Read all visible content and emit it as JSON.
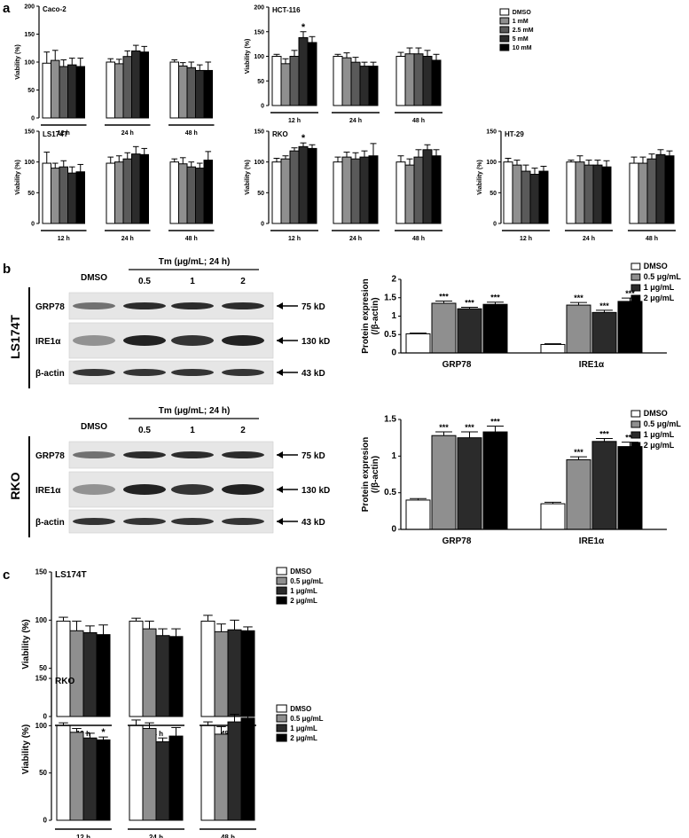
{
  "colors": {
    "DMSO": "#ffffff",
    "c1": "#8f8f8f",
    "c2": "#5a5a5a",
    "c3": "#2b2b2b",
    "c4": "#000000",
    "axis": "#000000"
  },
  "panel_labels": {
    "a": "a",
    "b": "b",
    "c": "c"
  },
  "panel_a": {
    "legend": [
      "DMSO",
      "1 mM",
      "2.5 mM",
      "5 mM",
      "10 mM"
    ],
    "ylabel": "Viability (%)",
    "timepoints": [
      "12 h",
      "24 h",
      "48 h"
    ]
  },
  "panel_b": {
    "treatment_header": "Tm (μg/mL; 24 h)",
    "dmso_label": "DMSO",
    "doses": [
      "0.5",
      "1",
      "2"
    ],
    "bands": [
      {
        "name": "GRP78",
        "kd": "75 kD"
      },
      {
        "name": "IRE1α",
        "kd": "130 kD"
      },
      {
        "name": "β-actin",
        "kd": "43 kD"
      }
    ],
    "cell_lines": [
      "LS174T",
      "RKO"
    ],
    "legend": [
      "DMSO",
      "0.5 μg/mL",
      "1 μg/mL",
      "2 μg/mL"
    ],
    "ylabel_line1": "Protein expresion",
    "ylabel_line2": "(/β-actin)",
    "groups": [
      "GRP78",
      "IRE1α"
    ]
  },
  "panel_c": {
    "legend": [
      "DMSO",
      "0.5 μg/mL",
      "1 μg/mL",
      "2 μg/mL"
    ],
    "ylabel": "Viability (%)",
    "timepoints": [
      "12 h",
      "24 h",
      "48 h"
    ]
  },
  "chart_data": [
    {
      "id": "a-caco2",
      "type": "bar",
      "title": "Caco-2",
      "ylabel": "Viability (%)",
      "ylim": [
        0,
        200
      ],
      "yticks": [
        0,
        50,
        100,
        150,
        200
      ],
      "categories": [
        "12 h",
        "24 h",
        "48 h"
      ],
      "series": [
        {
          "name": "DMSO",
          "values": [
            98,
            100,
            100
          ],
          "errors": [
            20,
            6,
            4
          ]
        },
        {
          "name": "1 mM",
          "values": [
            103,
            97,
            93
          ],
          "errors": [
            18,
            8,
            6
          ]
        },
        {
          "name": "2.5 mM",
          "values": [
            92,
            110,
            90
          ],
          "errors": [
            12,
            10,
            10
          ]
        },
        {
          "name": "5 mM",
          "values": [
            95,
            120,
            85
          ],
          "errors": [
            12,
            10,
            10
          ]
        },
        {
          "name": "10 mM",
          "values": [
            92,
            118,
            85
          ],
          "errors": [
            15,
            10,
            15
          ]
        }
      ],
      "stars": []
    },
    {
      "id": "a-hct116",
      "type": "bar",
      "title": "HCT-116",
      "ylabel": "Viability (%)",
      "ylim": [
        0,
        200
      ],
      "yticks": [
        0,
        50,
        100,
        150,
        200
      ],
      "categories": [
        "12 h",
        "24 h",
        "48 h"
      ],
      "series": [
        {
          "name": "DMSO",
          "values": [
            100,
            100,
            100
          ],
          "errors": [
            4,
            4,
            8
          ]
        },
        {
          "name": "1 mM",
          "values": [
            85,
            97,
            105
          ],
          "errors": [
            10,
            10,
            12
          ]
        },
        {
          "name": "2.5 mM",
          "values": [
            100,
            88,
            105
          ],
          "errors": [
            12,
            10,
            12
          ]
        },
        {
          "name": "5 mM",
          "values": [
            138,
            80,
            100
          ],
          "errors": [
            12,
            8,
            12
          ]
        },
        {
          "name": "10 mM",
          "values": [
            128,
            80,
            92
          ],
          "errors": [
            12,
            8,
            12
          ]
        }
      ],
      "stars": [
        {
          "category": 0,
          "series": 3,
          "label": "*"
        }
      ]
    },
    {
      "id": "a-ls174t",
      "type": "bar",
      "title": "LS174T",
      "ylabel": "Viability (%)",
      "ylim": [
        0,
        150
      ],
      "yticks": [
        0,
        50,
        100,
        150
      ],
      "categories": [
        "12 h",
        "24 h",
        "48 h"
      ],
      "series": [
        {
          "name": "DMSO",
          "values": [
            98,
            98,
            100
          ],
          "errors": [
            18,
            10,
            5
          ]
        },
        {
          "name": "1 mM",
          "values": [
            90,
            100,
            97
          ],
          "errors": [
            8,
            10,
            10
          ]
        },
        {
          "name": "2.5 mM",
          "values": [
            92,
            105,
            92
          ],
          "errors": [
            10,
            10,
            8
          ]
        },
        {
          "name": "5 mM",
          "values": [
            82,
            113,
            90
          ],
          "errors": [
            10,
            12,
            8
          ]
        },
        {
          "name": "10 mM",
          "values": [
            84,
            112,
            103
          ],
          "errors": [
            12,
            10,
            14
          ]
        }
      ],
      "stars": []
    },
    {
      "id": "a-rko",
      "type": "bar",
      "title": "RKO",
      "ylabel": "Viability (%)",
      "ylim": [
        0,
        150
      ],
      "yticks": [
        0,
        50,
        100,
        150
      ],
      "categories": [
        "12 h",
        "24 h",
        "48 h"
      ],
      "series": [
        {
          "name": "DMSO",
          "values": [
            100,
            100,
            100
          ],
          "errors": [
            6,
            8,
            10
          ]
        },
        {
          "name": "1 mM",
          "values": [
            105,
            108,
            95
          ],
          "errors": [
            5,
            8,
            10
          ]
        },
        {
          "name": "2.5 mM",
          "values": [
            118,
            105,
            108
          ],
          "errors": [
            5,
            10,
            12
          ]
        },
        {
          "name": "5 mM",
          "values": [
            125,
            108,
            120
          ],
          "errors": [
            6,
            10,
            8
          ]
        },
        {
          "name": "10 mM",
          "values": [
            122,
            110,
            110
          ],
          "errors": [
            6,
            20,
            10
          ]
        }
      ],
      "stars": [
        {
          "category": 0,
          "series": 3,
          "label": "*"
        }
      ]
    },
    {
      "id": "a-ht29",
      "type": "bar",
      "title": "HT-29",
      "ylabel": "Viability (%)",
      "ylim": [
        0,
        150
      ],
      "yticks": [
        0,
        50,
        100,
        150
      ],
      "categories": [
        "12 h",
        "24 h",
        "48 h"
      ],
      "series": [
        {
          "name": "DMSO",
          "values": [
            100,
            100,
            98
          ],
          "errors": [
            6,
            3,
            10
          ]
        },
        {
          "name": "1 mM",
          "values": [
            95,
            100,
            98
          ],
          "errors": [
            8,
            10,
            10
          ]
        },
        {
          "name": "2.5 mM",
          "values": [
            85,
            95,
            105
          ],
          "errors": [
            10,
            8,
            8
          ]
        },
        {
          "name": "5 mM",
          "values": [
            80,
            95,
            112
          ],
          "errors": [
            10,
            8,
            8
          ]
        },
        {
          "name": "10 mM",
          "values": [
            85,
            92,
            110
          ],
          "errors": [
            8,
            10,
            8
          ]
        }
      ],
      "stars": []
    },
    {
      "id": "b-ls174t",
      "type": "bar",
      "ylabel": "Protein expresion (/β-actin)",
      "ylim": [
        0,
        2
      ],
      "yticks": [
        0,
        0.5,
        1,
        1.5,
        2
      ],
      "categories": [
        "GRP78",
        "IRE1α"
      ],
      "series": [
        {
          "name": "DMSO",
          "values": [
            0.52,
            0.23
          ],
          "errors": [
            0.02,
            0.02
          ]
        },
        {
          "name": "0.5 μg/mL",
          "values": [
            1.35,
            1.3
          ],
          "errors": [
            0.06,
            0.07
          ]
        },
        {
          "name": "1 μg/mL",
          "values": [
            1.2,
            1.1
          ],
          "errors": [
            0.04,
            0.06
          ]
        },
        {
          "name": "2 μg/mL",
          "values": [
            1.32,
            1.4
          ],
          "errors": [
            0.06,
            0.09
          ]
        }
      ],
      "stars": [
        {
          "category": 0,
          "series": 1,
          "label": "***"
        },
        {
          "category": 0,
          "series": 2,
          "label": "***"
        },
        {
          "category": 0,
          "series": 3,
          "label": "***"
        },
        {
          "category": 1,
          "series": 1,
          "label": "***"
        },
        {
          "category": 1,
          "series": 2,
          "label": "***"
        },
        {
          "category": 1,
          "series": 3,
          "label": "***"
        }
      ]
    },
    {
      "id": "b-rko",
      "type": "bar",
      "ylabel": "Protein expresion (/β-actin)",
      "ylim": [
        0,
        1.5
      ],
      "yticks": [
        0,
        0.5,
        1,
        1.5
      ],
      "categories": [
        "GRP78",
        "IRE1α"
      ],
      "series": [
        {
          "name": "DMSO",
          "values": [
            0.4,
            0.35
          ],
          "errors": [
            0.02,
            0.02
          ]
        },
        {
          "name": "0.5 μg/mL",
          "values": [
            1.28,
            0.95
          ],
          "errors": [
            0.05,
            0.04
          ]
        },
        {
          "name": "1 μg/mL",
          "values": [
            1.25,
            1.2
          ],
          "errors": [
            0.08,
            0.04
          ]
        },
        {
          "name": "2 μg/mL",
          "values": [
            1.33,
            1.13
          ],
          "errors": [
            0.08,
            0.06
          ]
        }
      ],
      "stars": [
        {
          "category": 0,
          "series": 1,
          "label": "***"
        },
        {
          "category": 0,
          "series": 2,
          "label": "***"
        },
        {
          "category": 0,
          "series": 3,
          "label": "***"
        },
        {
          "category": 1,
          "series": 1,
          "label": "***"
        },
        {
          "category": 1,
          "series": 2,
          "label": "***"
        },
        {
          "category": 1,
          "series": 3,
          "label": "***"
        }
      ]
    },
    {
      "id": "c-ls174t",
      "type": "bar",
      "title": "LS174T",
      "ylabel": "Viability (%)",
      "ylim": [
        0,
        150
      ],
      "yticks": [
        0,
        50,
        100,
        150
      ],
      "categories": [
        "12 h",
        "24 h",
        "48 h"
      ],
      "series": [
        {
          "name": "DMSO",
          "values": [
            99,
            99,
            99
          ],
          "errors": [
            4,
            3,
            6
          ]
        },
        {
          "name": "0.5 μg/mL",
          "values": [
            89,
            91,
            88
          ],
          "errors": [
            10,
            8,
            8
          ]
        },
        {
          "name": "1 μg/mL",
          "values": [
            87,
            84,
            90
          ],
          "errors": [
            7,
            7,
            10
          ]
        },
        {
          "name": "2 μg/mL",
          "values": [
            85,
            83,
            89
          ],
          "errors": [
            10,
            8,
            4
          ]
        }
      ],
      "stars": []
    },
    {
      "id": "c-rko",
      "type": "bar",
      "title": "RKO",
      "ylabel": "Viability (%)",
      "ylim": [
        0,
        150
      ],
      "yticks": [
        0,
        50,
        100,
        150
      ],
      "categories": [
        "12 h",
        "24 h",
        "48 h"
      ],
      "series": [
        {
          "name": "DMSO",
          "values": [
            100,
            100,
            100
          ],
          "errors": [
            3,
            6,
            4
          ]
        },
        {
          "name": "0.5 μg/mL",
          "values": [
            93,
            97,
            91
          ],
          "errors": [
            4,
            6,
            8
          ]
        },
        {
          "name": "1 μg/mL",
          "values": [
            87,
            83,
            104
          ],
          "errors": [
            5,
            4,
            8
          ]
        },
        {
          "name": "2 μg/mL",
          "values": [
            85,
            89,
            108
          ],
          "errors": [
            3,
            9,
            2
          ]
        }
      ],
      "stars": [
        {
          "category": 0,
          "series": 3,
          "label": "*"
        }
      ]
    }
  ]
}
